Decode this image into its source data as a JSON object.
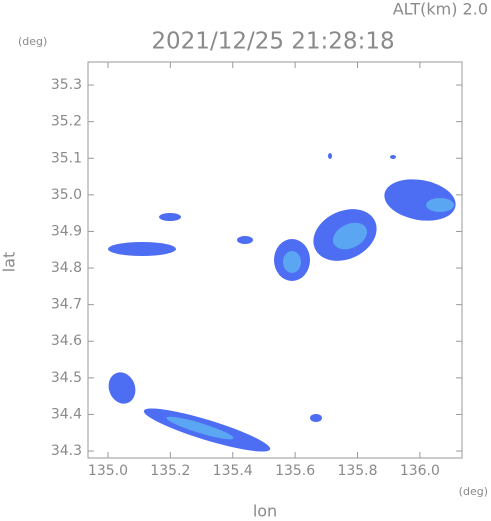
{
  "chart_data": {
    "type": "radar",
    "title": "2021/12/25 21:28:18",
    "annotation": "ALT(km) 2.0",
    "x_label": "lon",
    "y_label": "lat",
    "x_unit": "(deg)",
    "y_unit": "(deg)",
    "xlim": [
      134.936,
      136.135
    ],
    "ylim": [
      34.281,
      35.363
    ],
    "xticks": [
      {
        "value": 135,
        "label": "135.0"
      },
      135.2,
      135.4,
      135.6,
      135.8,
      {
        "value": 136,
        "label": "136.0"
      }
    ],
    "yticks": [
      34.3,
      34.4,
      34.5,
      34.6,
      34.7,
      34.8,
      34.9,
      {
        "value": 35,
        "label": "35.0"
      },
      35.1,
      35.2,
      35.3
    ]
  }
}
